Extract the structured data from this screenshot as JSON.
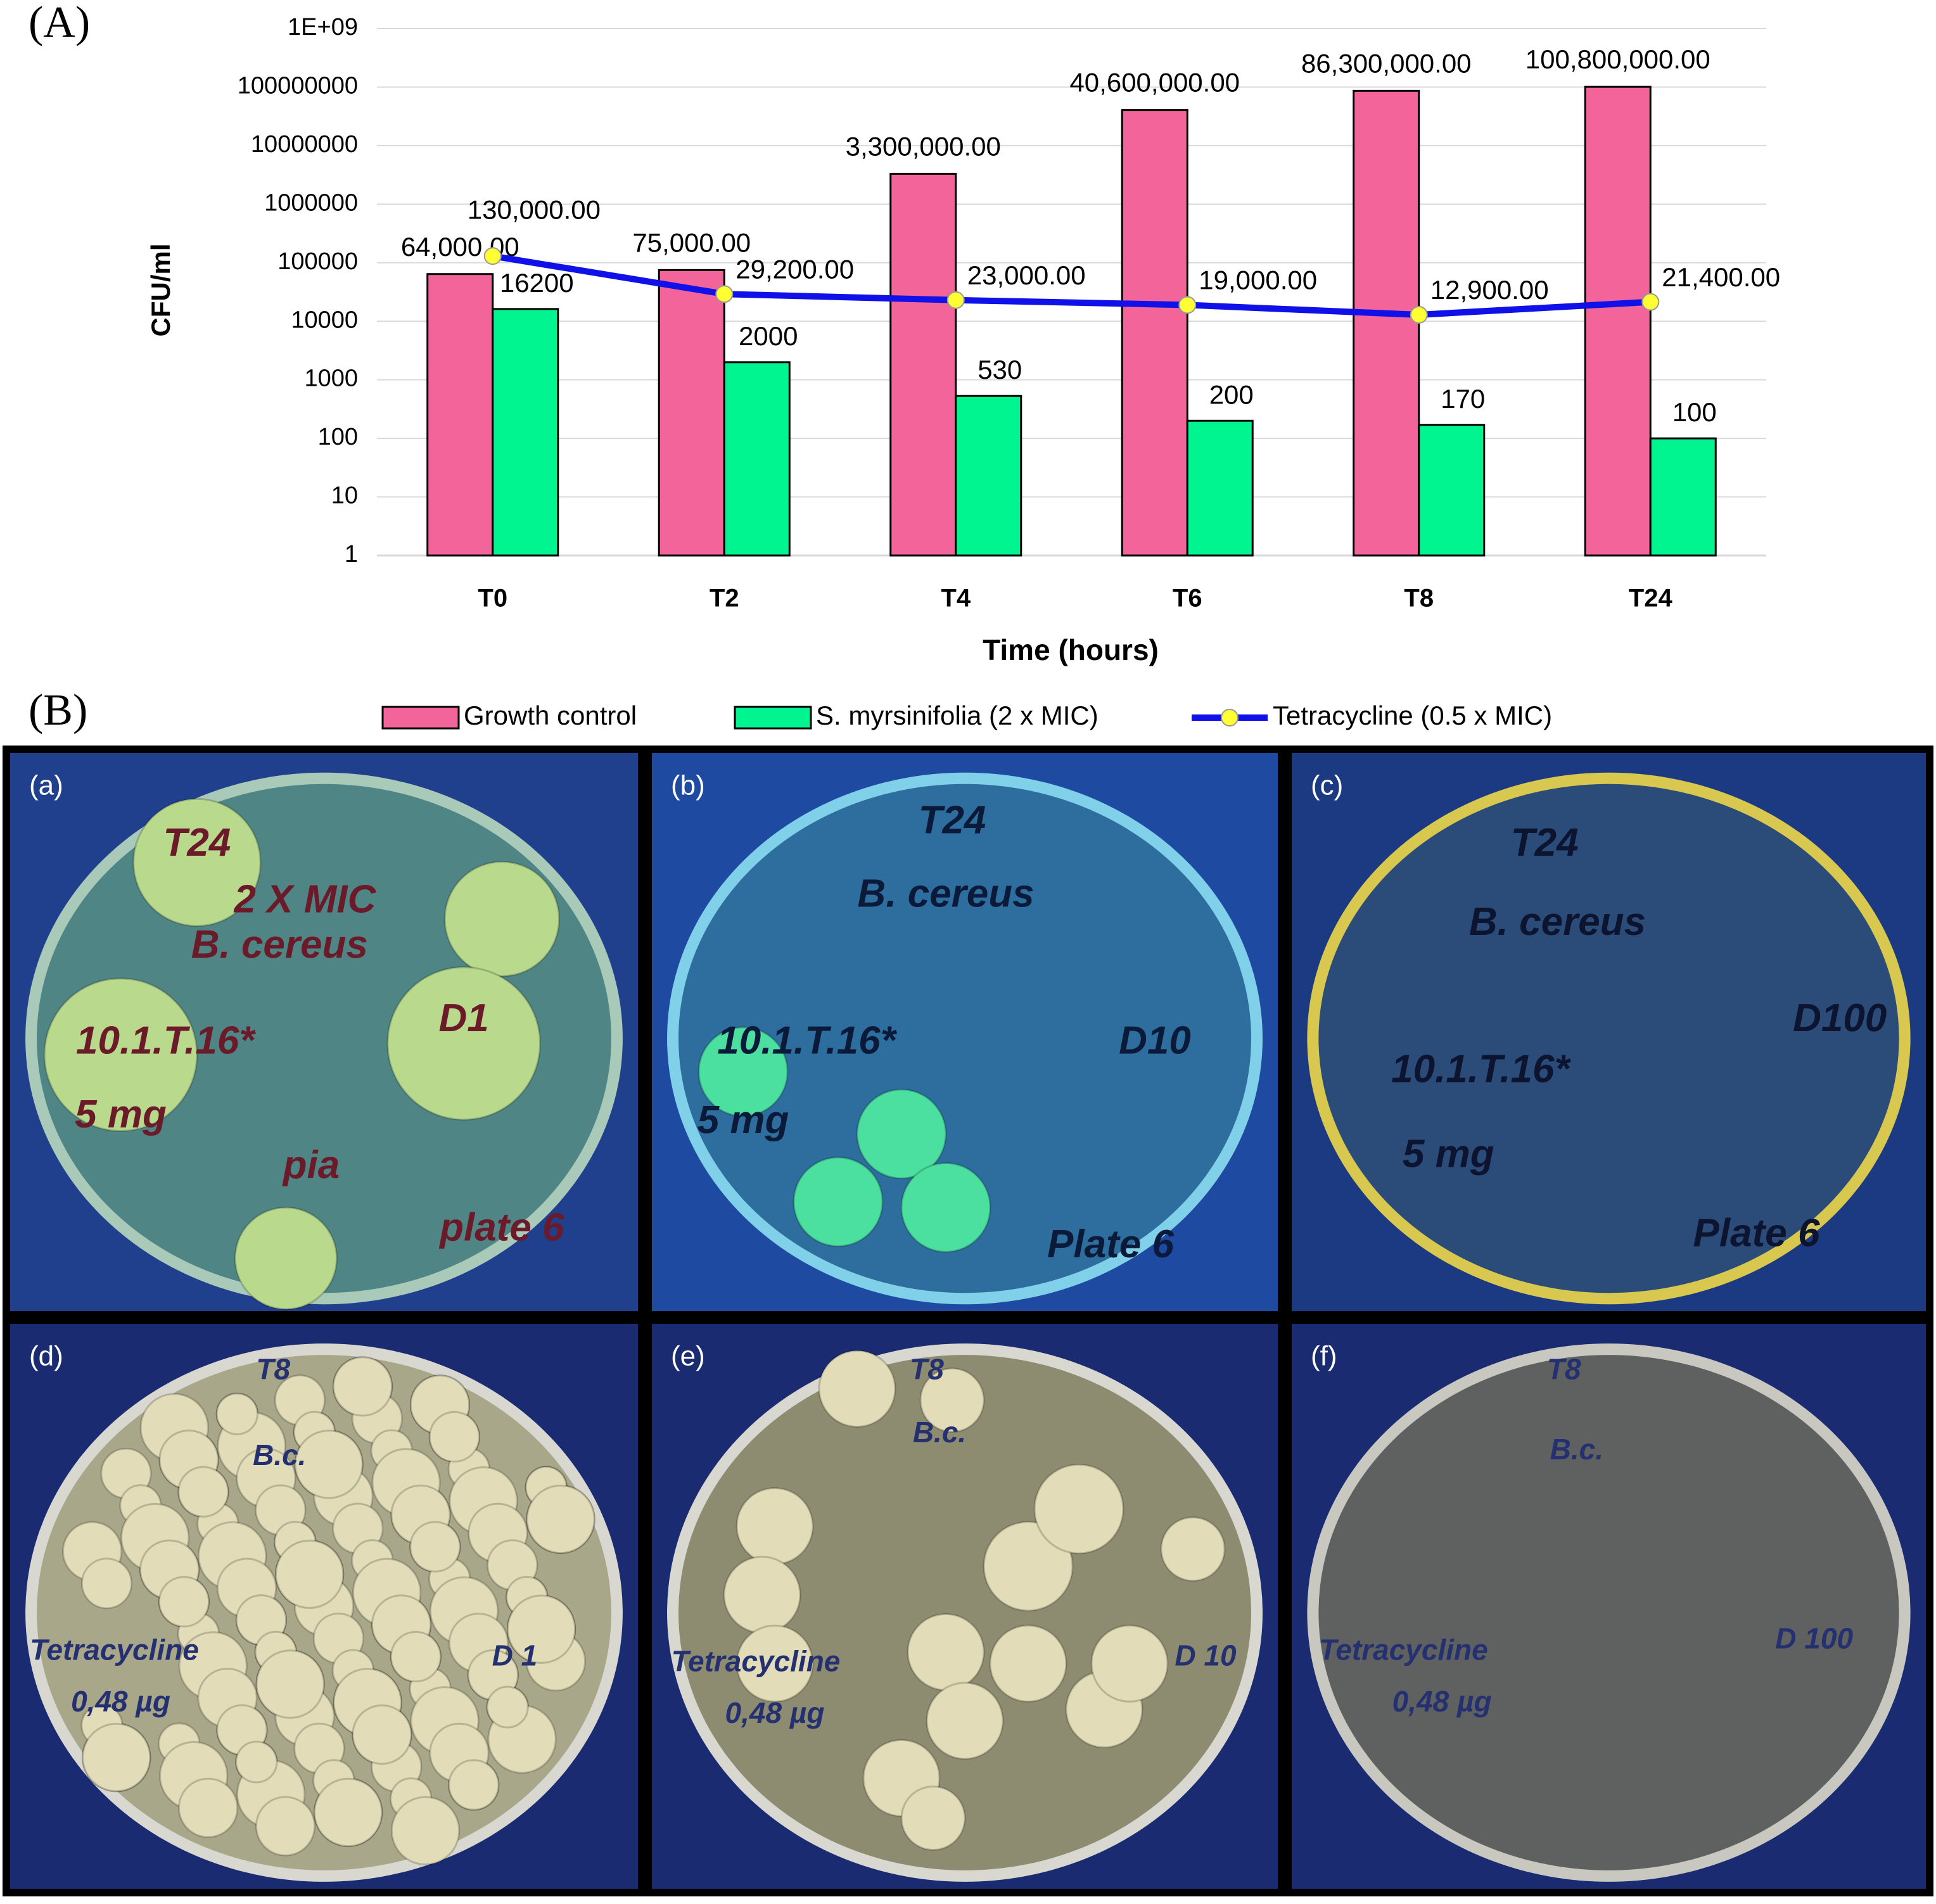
{
  "figure_labels": [
    "(A)",
    "(B)"
  ],
  "chart_data": {
    "type": "bar-line",
    "y_label": "CFU/ml",
    "x_label": "Time (hours)",
    "categories": [
      "T0",
      "T2",
      "T4",
      "T6",
      "T8",
      "T24"
    ],
    "log_scale": true,
    "grid": true,
    "legend": "bottom",
    "ylim": [
      1,
      1000000000
    ],
    "yticks": [
      1,
      10,
      100,
      1000,
      10000,
      100000,
      1000000,
      10000000,
      100000000,
      {
        "value": 1000000000,
        "label": "1E+09"
      }
    ],
    "series": [
      {
        "name": "Growth control",
        "kind": "bar",
        "color": "#f2649a",
        "values": [
          64000,
          75000,
          3300000,
          40600000,
          86300000,
          100800000
        ],
        "value_labels": [
          "64,000.00",
          "75,000.00",
          "3,300,000.00",
          "40,600,000.00",
          "86,300,000.00",
          "100,800,000.00"
        ]
      },
      {
        "name": "S. myrsinifolia (2 x MIC)",
        "kind": "bar",
        "color": "#00f590",
        "values": [
          16200,
          2000,
          530,
          200,
          170,
          100
        ]
      },
      {
        "name": "Tetracycline (0.5 x MIC)",
        "kind": "line",
        "color": "#1010e8",
        "marker_color": "#ffff33",
        "values": [
          130000,
          29200,
          23000,
          19000,
          12900,
          21400
        ],
        "value_labels": [
          "130,000.00",
          "29,200.00",
          "23,000.00",
          "19,000.00",
          "12,900.00",
          "21,400.00"
        ]
      }
    ]
  },
  "panels": [
    {
      "label": "(a)",
      "notes": [
        "T24",
        "2 X MIC",
        "B. cereus",
        "10.1.T.16*",
        "5 mg",
        "D1",
        "pia",
        "plate 6"
      ]
    },
    {
      "label": "(b)",
      "notes": [
        "T24",
        "B. cereus",
        "10.1.T.16*",
        "5 mg",
        "D10",
        "Plate 6"
      ]
    },
    {
      "label": "(c)",
      "notes": [
        "T24",
        "B. cereus",
        "10.1.T.16*",
        "5 mg",
        "D100",
        "Plate 6"
      ]
    },
    {
      "label": "(d)",
      "notes": [
        "T8",
        "B.c.",
        "Tetracycline",
        "0,48 µg",
        "D 1"
      ]
    },
    {
      "label": "(e)",
      "notes": [
        "T8",
        "B.c.",
        "Tetracycline",
        "0,48 µg",
        "D 10"
      ]
    },
    {
      "label": "(f)",
      "notes": [
        "T8",
        "B.c.",
        "Tetracycline",
        "0,48 µg",
        "D 100"
      ]
    }
  ]
}
